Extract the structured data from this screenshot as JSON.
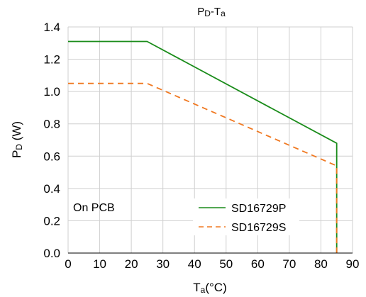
{
  "chart_data": {
    "type": "line",
    "title": {
      "main": "P",
      "sub": "D",
      "rest": "-T",
      "sub2": "a"
    },
    "ylabel": {
      "main": "P",
      "sub": "D",
      "rest": " (W)"
    },
    "xlabel": {
      "main": "T",
      "sub": "a",
      "rest": "(°C)"
    },
    "xlim": [
      0,
      90
    ],
    "ylim": [
      0,
      1.4
    ],
    "xticks": [
      "0",
      "10",
      "20",
      "30",
      "40",
      "50",
      "60",
      "70",
      "80",
      "90"
    ],
    "yticks": [
      "0.0",
      "0.2",
      "0.4",
      "0.6",
      "0.8",
      "1.0",
      "1.2",
      "1.4"
    ],
    "grid": true,
    "annotation": "On PCB",
    "legend_position": "bottom-right",
    "series": [
      {
        "name": "SD16729P",
        "color": "#1a8c1a",
        "dash": "solid",
        "x": [
          0,
          25,
          85,
          85
        ],
        "y": [
          1.31,
          1.31,
          0.68,
          0
        ]
      },
      {
        "name": "SD16729S",
        "color": "#f07820",
        "dash": "dashed",
        "x": [
          0,
          25,
          85,
          85
        ],
        "y": [
          1.05,
          1.05,
          0.54,
          0
        ]
      }
    ]
  }
}
